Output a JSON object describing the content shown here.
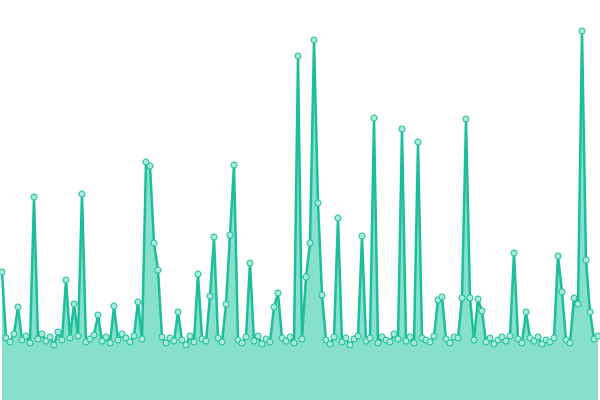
{
  "chart_data": {
    "type": "area",
    "categories": [
      null,
      null,
      null,
      null,
      null,
      null,
      null,
      null,
      null,
      null,
      null,
      null,
      null,
      null,
      null,
      null,
      null,
      null,
      null,
      null,
      null,
      null,
      null,
      null,
      null,
      null,
      null,
      null,
      null,
      null,
      null,
      null,
      null,
      null,
      null,
      null,
      null,
      null,
      null,
      null,
      null,
      null,
      null,
      null,
      null,
      null,
      null,
      null,
      null,
      null,
      null,
      null,
      null,
      null,
      null,
      null,
      null,
      null,
      null,
      null,
      null,
      null,
      null,
      null,
      null,
      null,
      null,
      null,
      null,
      null,
      null,
      null,
      null,
      null,
      null,
      null,
      null,
      null,
      null,
      null,
      null,
      null,
      null,
      null,
      null,
      null,
      null,
      null,
      null,
      null,
      null,
      null,
      null,
      null,
      null,
      null,
      null,
      null,
      null,
      null,
      null,
      null,
      null,
      null,
      null,
      null,
      null,
      null,
      null,
      null,
      null,
      null,
      null,
      null,
      null,
      null,
      null,
      null,
      null,
      null,
      null,
      null,
      null,
      null,
      null,
      null,
      null,
      null,
      null,
      null,
      null,
      null,
      null,
      null,
      null,
      null,
      null,
      null,
      null,
      null,
      null,
      null,
      null,
      null,
      null,
      null,
      null,
      null,
      null,
      null
    ],
    "values": [
      128,
      62,
      58,
      66,
      93,
      60,
      64,
      57,
      203,
      61,
      66,
      59,
      63,
      55,
      68,
      60,
      120,
      62,
      96,
      64,
      206,
      58,
      61,
      65,
      85,
      59,
      63,
      57,
      94,
      60,
      66,
      62,
      58,
      64,
      98,
      61,
      238,
      234,
      157,
      130,
      63,
      57,
      62,
      59,
      88,
      60,
      55,
      64,
      58,
      126,
      61,
      59,
      104,
      163,
      62,
      58,
      96,
      165,
      235,
      60,
      57,
      63,
      137,
      59,
      64,
      56,
      61,
      58,
      93,
      107,
      62,
      59,
      63,
      57,
      344,
      61,
      123,
      157,
      360,
      197,
      105,
      60,
      56,
      63,
      182,
      58,
      62,
      55,
      61,
      64,
      164,
      59,
      62,
      282,
      57,
      63,
      60,
      58,
      66,
      61,
      271,
      59,
      63,
      57,
      258,
      62,
      60,
      58,
      64,
      100,
      103,
      61,
      57,
      63,
      62,
      102,
      281,
      102,
      60,
      101,
      89,
      58,
      62,
      56,
      60,
      63,
      59,
      64,
      147,
      61,
      57,
      88,
      62,
      59,
      63,
      56,
      60,
      58,
      62,
      144,
      108,
      60,
      57,
      102,
      96,
      369,
      140,
      88,
      61,
      64
    ],
    "color": "#1dbf9b",
    "fill_color": "#87e0cc",
    "ylim": [
      0,
      400
    ]
  }
}
